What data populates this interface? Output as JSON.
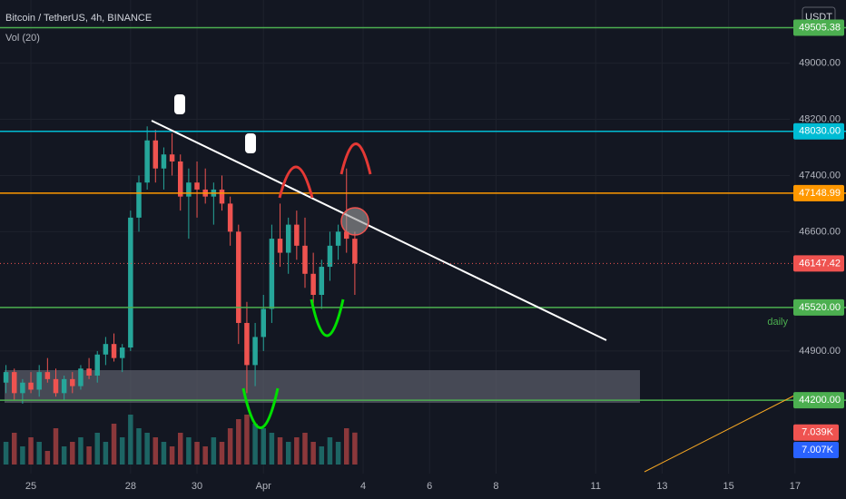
{
  "chart_data": {
    "type": "candlestick",
    "title": "Bitcoin / TetherUS, 4h, BINANCE",
    "subtitle": "Vol (20)",
    "currency": "USDT",
    "annotation": "daily",
    "up_color": "#26a69a",
    "down_color": "#ef5350",
    "xlim": [
      -0.93,
      22.84
    ],
    "xticks": [
      {
        "value": 0,
        "label": "25"
      },
      {
        "value": 3,
        "label": "28"
      },
      {
        "value": 5,
        "label": "30"
      },
      {
        "value": 7,
        "label": "Apr"
      },
      {
        "value": 10,
        "label": "4"
      },
      {
        "value": 12,
        "label": "6"
      },
      {
        "value": 14,
        "label": "8"
      },
      {
        "value": 17,
        "label": "11"
      },
      {
        "value": 19,
        "label": "13"
      },
      {
        "value": 21,
        "label": "15"
      },
      {
        "value": 23,
        "label": "17"
      }
    ],
    "ylim": [
      43180,
      49900
    ],
    "yticks": [
      {
        "value": 49000,
        "label": "49000.00"
      },
      {
        "value": 48200,
        "label": "48200.00"
      },
      {
        "value": 47400,
        "label": "47400.00"
      },
      {
        "value": 46600,
        "label": "46600.00"
      },
      {
        "value": 44900,
        "label": "44900.00"
      }
    ],
    "grid": true,
    "price_lines": [
      {
        "value": 49505.38,
        "label": "49505.38",
        "color": "#4caf50"
      },
      {
        "value": 48030,
        "label": "48030.00",
        "color": "#00bcd4"
      },
      {
        "value": 47148.99,
        "label": "47148.99",
        "color": "#ff9800"
      },
      {
        "value": 46147.42,
        "label": "46147.42",
        "color": "#ef5350"
      },
      {
        "value": 45520,
        "label": "45520.00",
        "color": "#4caf50"
      },
      {
        "value": 44200,
        "label": "44200.00",
        "color": "#4caf50"
      }
    ],
    "candles": {
      "x": [
        -0.75,
        -0.5,
        -0.25,
        0,
        0.25,
        0.5,
        0.75,
        1,
        1.25,
        1.5,
        1.75,
        2,
        2.25,
        2.5,
        2.75,
        3,
        3.25,
        3.5,
        3.75,
        4,
        4.25,
        4.5,
        4.75,
        5,
        5.25,
        5.5,
        5.75,
        6,
        6.25,
        6.5,
        6.75,
        7,
        7.25,
        7.5,
        7.75,
        8,
        8.25,
        8.5,
        8.75,
        9,
        9.25,
        9.5,
        9.75
      ],
      "open": [
        44450,
        44600,
        44300,
        44450,
        44350,
        44600,
        44500,
        44300,
        44500,
        44400,
        44650,
        44550,
        44850,
        45000,
        44800,
        44950,
        46800,
        47300,
        47900,
        47500,
        47700,
        47600,
        47100,
        47300,
        47200,
        47100,
        47200,
        47000,
        46600,
        45300,
        44700,
        45100,
        45500,
        46500,
        46300,
        46700,
        46400,
        46000,
        45700,
        46100,
        46400,
        46600,
        46500
      ],
      "high": [
        44700,
        44650,
        44500,
        44600,
        44700,
        44800,
        44650,
        44550,
        44600,
        44700,
        44800,
        44900,
        45100,
        45150,
        45000,
        46900,
        47400,
        48100,
        48050,
        47800,
        48000,
        47700,
        47500,
        47600,
        47500,
        47300,
        47400,
        47100,
        46700,
        45600,
        45300,
        45700,
        46700,
        47000,
        46800,
        46900,
        46800,
        46300,
        46200,
        46600,
        46700,
        47500,
        46600
      ],
      "low": [
        44300,
        44200,
        44150,
        44300,
        44250,
        44450,
        44250,
        44200,
        44300,
        44350,
        44500,
        44450,
        44700,
        44750,
        44600,
        44900,
        46600,
        47200,
        47300,
        47200,
        47400,
        46900,
        46500,
        46800,
        47000,
        46700,
        46900,
        46400,
        45000,
        44300,
        44400,
        44900,
        45300,
        46100,
        46000,
        46200,
        45800,
        45500,
        45500,
        45900,
        46200,
        46300,
        45700
      ],
      "close": [
        44600,
        44300,
        44450,
        44350,
        44600,
        44500,
        44300,
        44500,
        44400,
        44650,
        44550,
        44850,
        45000,
        44800,
        44950,
        46800,
        47300,
        47900,
        47500,
        47700,
        47600,
        47100,
        47300,
        47200,
        47100,
        47200,
        47000,
        46600,
        45300,
        44700,
        45100,
        45500,
        46500,
        46300,
        46700,
        46400,
        46000,
        45700,
        46100,
        46400,
        46600,
        46500,
        46147.42
      ]
    },
    "volume": {
      "ylim": [
        0,
        12
      ],
      "values": [
        5,
        7,
        4,
        6,
        5,
        3,
        8,
        4,
        5,
        6,
        4,
        7,
        5,
        9,
        6,
        11,
        8,
        7,
        6,
        5,
        4,
        7,
        6,
        5,
        4,
        6,
        5,
        8,
        10,
        11,
        9,
        8,
        7,
        6,
        5,
        6,
        7,
        5,
        4,
        6,
        5,
        8,
        7.039
      ]
    },
    "volume_labels": [
      {
        "value": 7.039,
        "label": "7.039K",
        "color": "#ef5350"
      },
      {
        "value": 7.007,
        "label": "7.007K",
        "color": "#2962ff"
      }
    ]
  }
}
